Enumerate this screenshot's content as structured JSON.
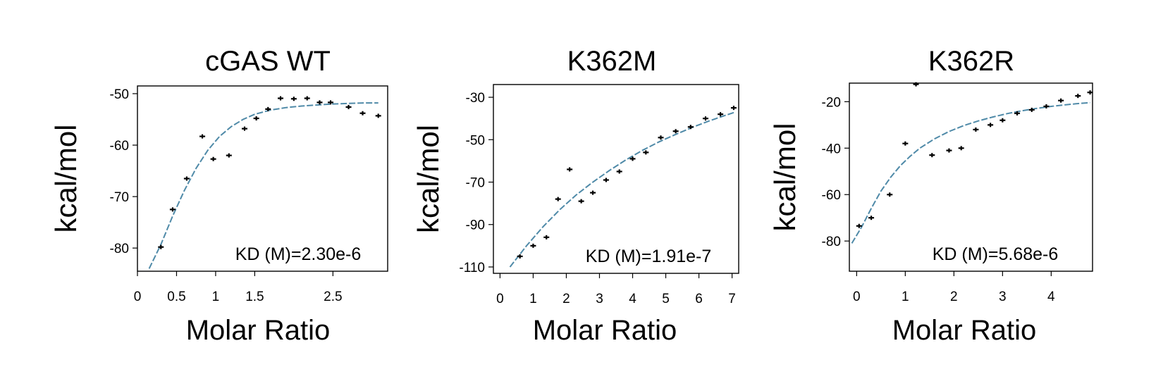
{
  "chart_data": [
    {
      "type": "scatter",
      "title": "cGAS WT",
      "xlabel": "Molar Ratio",
      "ylabel": "kcal/mol",
      "annotation": "KD (M)=2.30e-6",
      "xlim": [
        0,
        3.2
      ],
      "ylim": [
        -84.5,
        -48.5
      ],
      "xticks": [
        0,
        0.5,
        1,
        1.5,
        2.5
      ],
      "xtick_labels": [
        "0",
        "0.5",
        "1",
        "1.5",
        "2.5"
      ],
      "yticks": [
        -50,
        -60,
        -70,
        -80
      ],
      "ytick_labels": [
        "-50",
        "-60",
        "-70",
        "-80"
      ],
      "points": {
        "x": [
          0.3,
          0.45,
          0.63,
          0.83,
          0.97,
          1.17,
          1.37,
          1.52,
          1.67,
          1.83,
          2.0,
          2.17,
          2.33,
          2.47,
          2.7,
          2.88,
          3.08
        ],
        "y": [
          -79.8,
          -72.5,
          -66.5,
          -58.3,
          -62.7,
          -62.0,
          -56.8,
          -54.8,
          -53.0,
          -50.9,
          -51.0,
          -50.9,
          -51.7,
          -51.7,
          -52.6,
          -53.8,
          -54.3
        ]
      },
      "fit": {
        "x": [
          0.15,
          0.3,
          0.45,
          0.6,
          0.75,
          0.9,
          1.05,
          1.2,
          1.35,
          1.5,
          1.7,
          1.9,
          2.1,
          2.3,
          2.5,
          2.7,
          2.9,
          3.08
        ],
        "y": [
          -84.0,
          -79.3,
          -73.8,
          -68.8,
          -64.5,
          -61.0,
          -58.3,
          -56.4,
          -55.0,
          -54.0,
          -53.2,
          -52.7,
          -52.4,
          -52.2,
          -52.0,
          -51.9,
          -51.8,
          -51.8
        ]
      },
      "fit_color": "#4f8aa8"
    },
    {
      "type": "scatter",
      "title": "K362M",
      "xlabel": "Molar Ratio",
      "ylabel": "kcal/mol",
      "annotation": "KD (M)=1.91e-7",
      "xlim": [
        -0.2,
        7.2
      ],
      "ylim": [
        -113,
        -24
      ],
      "xticks": [
        0,
        1,
        2,
        3,
        4,
        5,
        6,
        7
      ],
      "xtick_labels": [
        "0",
        "1",
        "2",
        "3",
        "4",
        "5",
        "6",
        "7"
      ],
      "yticks": [
        -30,
        -50,
        -70,
        -90,
        -110
      ],
      "ytick_labels": [
        "-30",
        "-50",
        "-70",
        "-90",
        "-110"
      ],
      "points": {
        "x": [
          0.6,
          1.0,
          1.4,
          1.75,
          2.1,
          2.45,
          2.8,
          3.2,
          3.6,
          4.0,
          4.4,
          4.85,
          5.3,
          5.75,
          6.2,
          6.65,
          7.05
        ],
        "y": [
          -105,
          -100,
          -96,
          -78,
          -64,
          -79,
          -75,
          -69,
          -65,
          -59,
          -56,
          -49,
          -46,
          -44,
          -40,
          -38,
          -35
        ]
      },
      "fit": {
        "x": [
          0.3,
          0.8,
          1.3,
          1.8,
          2.3,
          2.8,
          3.3,
          3.8,
          4.3,
          4.8,
          5.3,
          5.8,
          6.3,
          6.8,
          7.1
        ],
        "y": [
          -110,
          -100,
          -91,
          -83,
          -76,
          -70,
          -64.5,
          -59.5,
          -55,
          -51,
          -47.5,
          -44.2,
          -41.2,
          -38.5,
          -37
        ]
      },
      "fit_color": "#4f8aa8"
    },
    {
      "type": "scatter",
      "title": "K362R",
      "xlabel": "Molar Ratio",
      "ylabel": "kcal/mol",
      "annotation": "KD (M)=5.68e-6",
      "xlim": [
        -0.15,
        4.85
      ],
      "ylim": [
        -93,
        -12
      ],
      "xticks": [
        0,
        1,
        2,
        3,
        4
      ],
      "xtick_labels": [
        "0",
        "1",
        "2",
        "3",
        "4"
      ],
      "yticks": [
        -20,
        -40,
        -60,
        -80
      ],
      "ytick_labels": [
        "-20",
        "-40",
        "-60",
        "-80"
      ],
      "points": {
        "x": [
          0.05,
          0.3,
          0.68,
          1.0,
          1.22,
          1.55,
          1.9,
          2.15,
          2.45,
          2.75,
          3.0,
          3.3,
          3.6,
          3.9,
          4.2,
          4.55,
          4.8
        ],
        "y": [
          -73.5,
          -70,
          -60,
          -38,
          -12.5,
          -43,
          -41,
          -40,
          -32,
          -30,
          -28,
          -25,
          -23.5,
          -22,
          -19.5,
          -17.5,
          -16
        ]
      },
      "fit": {
        "x": [
          -0.1,
          0.1,
          0.3,
          0.5,
          0.7,
          0.9,
          1.1,
          1.3,
          1.6,
          1.9,
          2.2,
          2.5,
          2.8,
          3.1,
          3.4,
          3.7,
          4.0,
          4.3,
          4.6,
          4.8
        ],
        "y": [
          -81,
          -74,
          -66,
          -58.5,
          -52.5,
          -47.5,
          -43.5,
          -40,
          -36,
          -32.8,
          -30.3,
          -28.3,
          -26.6,
          -25.1,
          -23.9,
          -22.9,
          -22,
          -21.3,
          -20.7,
          -20.4
        ]
      },
      "fit_color": "#4f8aa8"
    }
  ]
}
